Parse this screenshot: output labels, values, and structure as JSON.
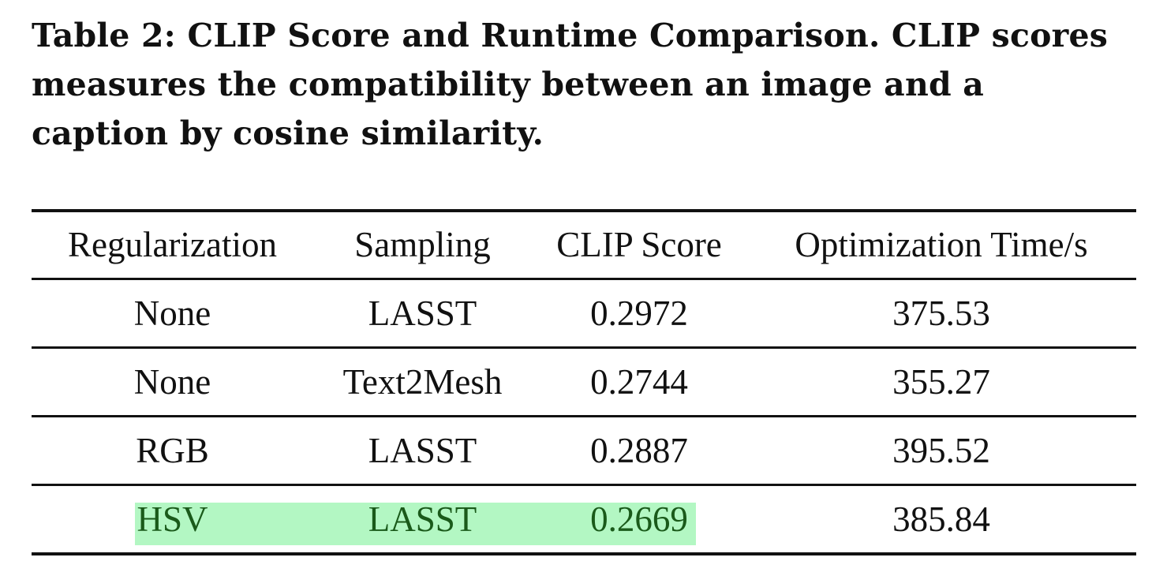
{
  "caption": "Table 2: CLIP Score and Runtime Comparison. CLIP scores measures the compatibility between an image and a caption by cosine similarity.",
  "table": {
    "headers": [
      "Regularization",
      "Sampling",
      "CLIP Score",
      "Optimization Time/s"
    ],
    "rows": [
      [
        "None",
        "LASST",
        "0.2972",
        "375.53"
      ],
      [
        "None",
        "Text2Mesh",
        "0.2744",
        "355.27"
      ],
      [
        "RGB",
        "LASST",
        "0.2887",
        "395.52"
      ],
      [
        "HSV",
        "LASST",
        "0.2669",
        "385.84"
      ]
    ]
  },
  "colors": {
    "highlight_background": "#b3f7c3",
    "highlight_text": "#1a5a1a"
  }
}
